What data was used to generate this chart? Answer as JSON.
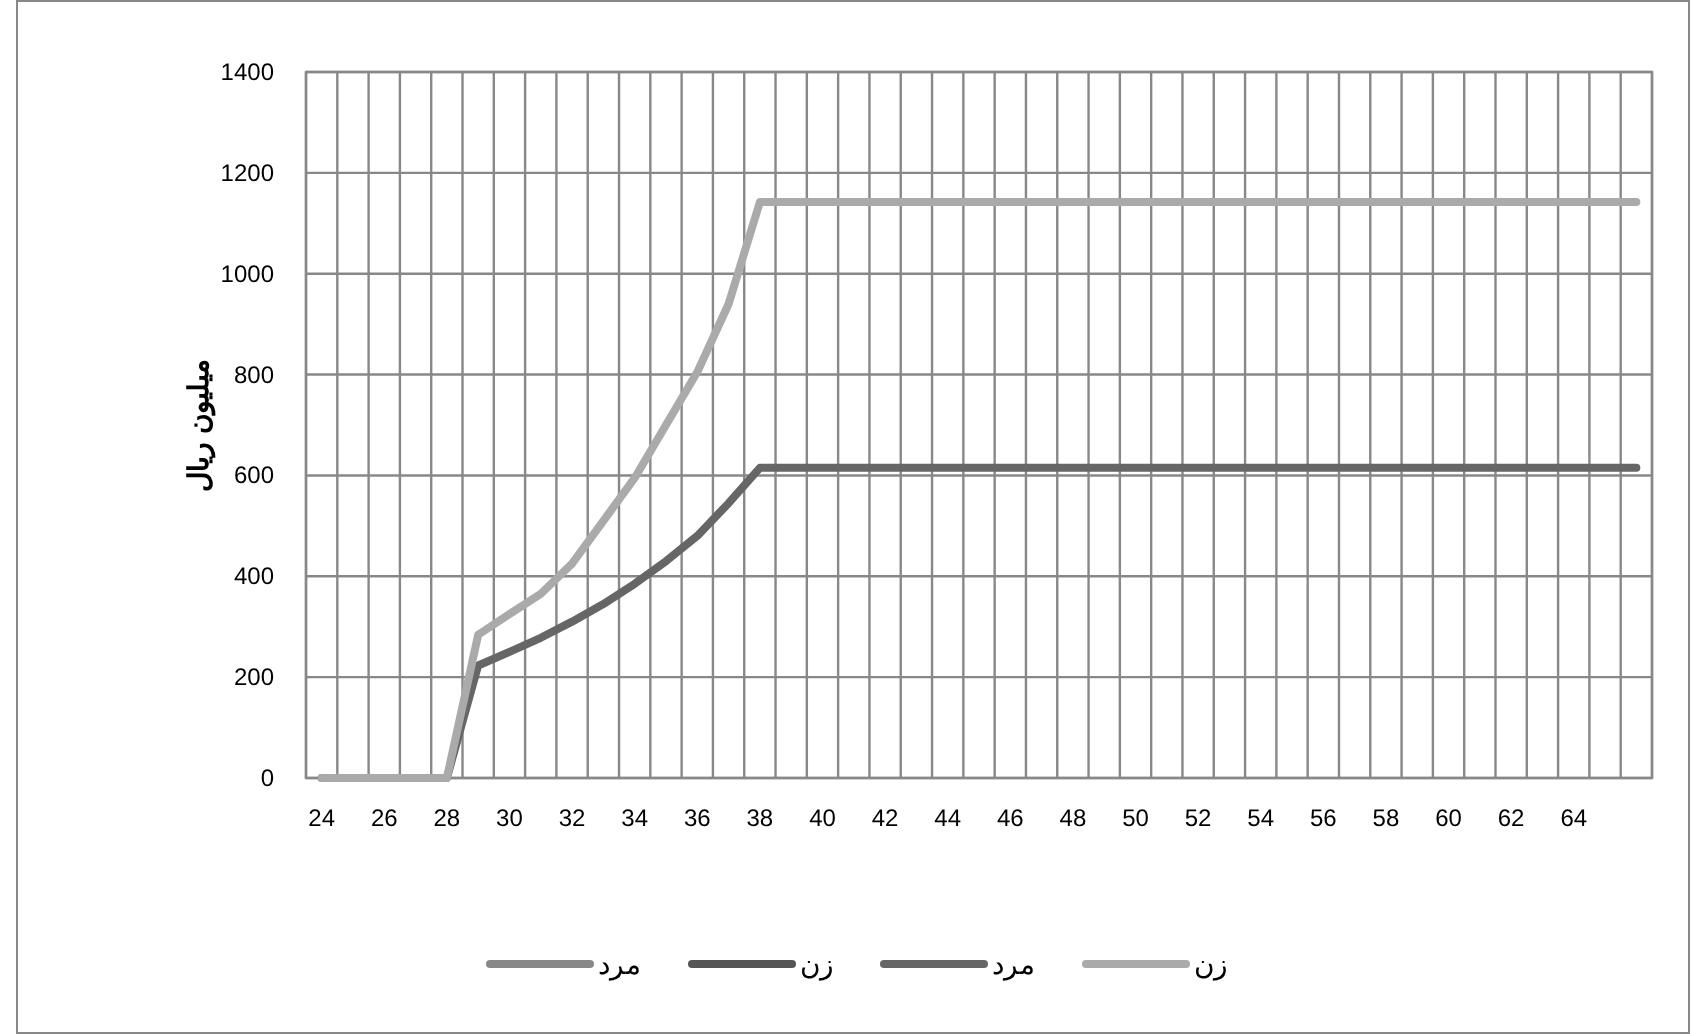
{
  "chart_data": {
    "type": "line",
    "ylabel": "میلیون ریال",
    "categories": [
      "24",
      null,
      "26",
      null,
      "28",
      null,
      "30",
      null,
      "32",
      null,
      "34",
      null,
      "36",
      null,
      "38",
      null,
      "40",
      null,
      "42",
      null,
      "44",
      null,
      "46",
      null,
      "48",
      null,
      "50",
      null,
      "52",
      null,
      "54",
      null,
      "56",
      null,
      "58",
      null,
      "60",
      null,
      "62",
      null,
      "64",
      null,
      null
    ],
    "series": [
      {
        "name": "مرد",
        "color": "#888888",
        "values": [
          null,
          null,
          null,
          null,
          null,
          null,
          null,
          null,
          null,
          null,
          null,
          null,
          null,
          null,
          null,
          null,
          null,
          null,
          null,
          null,
          null,
          null,
          null,
          null,
          null,
          null,
          null,
          null,
          null,
          null,
          null,
          null,
          null,
          null,
          null,
          null,
          null,
          null,
          null,
          null,
          null,
          null,
          null
        ]
      },
      {
        "name": "زن",
        "color": "#555555",
        "values": [
          null,
          null,
          null,
          null,
          null,
          null,
          null,
          null,
          null,
          null,
          null,
          null,
          null,
          null,
          null,
          null,
          null,
          null,
          null,
          null,
          null,
          null,
          null,
          null,
          null,
          null,
          null,
          null,
          null,
          null,
          null,
          null,
          null,
          null,
          null,
          null,
          null,
          null,
          null,
          null,
          null,
          null,
          null
        ]
      },
      {
        "name": "مرد",
        "color": "#666666",
        "values": [
          0,
          0,
          0,
          0,
          0,
          223,
          250,
          278,
          310,
          345,
          385,
          430,
          480,
          545,
          615,
          615,
          615,
          615,
          615,
          615,
          615,
          615,
          615,
          615,
          615,
          615,
          615,
          615,
          615,
          615,
          615,
          615,
          615,
          615,
          615,
          615,
          615,
          615,
          615,
          615,
          615,
          615,
          615
        ]
      },
      {
        "name": "زن",
        "color": "#aaaaaa",
        "values": [
          0,
          0,
          0,
          0,
          0,
          284,
          325,
          365,
          425,
          510,
          595,
          700,
          805,
          940,
          1142,
          1142,
          1142,
          1142,
          1142,
          1142,
          1142,
          1142,
          1142,
          1142,
          1142,
          1142,
          1142,
          1142,
          1142,
          1142,
          1142,
          1142,
          1142,
          1142,
          1142,
          1142,
          1142,
          1142,
          1142,
          1142,
          1142,
          1142,
          1142
        ]
      }
    ],
    "ylim": [
      0,
      1400
    ],
    "yticks": [
      0,
      200,
      400,
      600,
      800,
      1000,
      1200,
      1400
    ],
    "grid": true,
    "legend": "bottom"
  }
}
